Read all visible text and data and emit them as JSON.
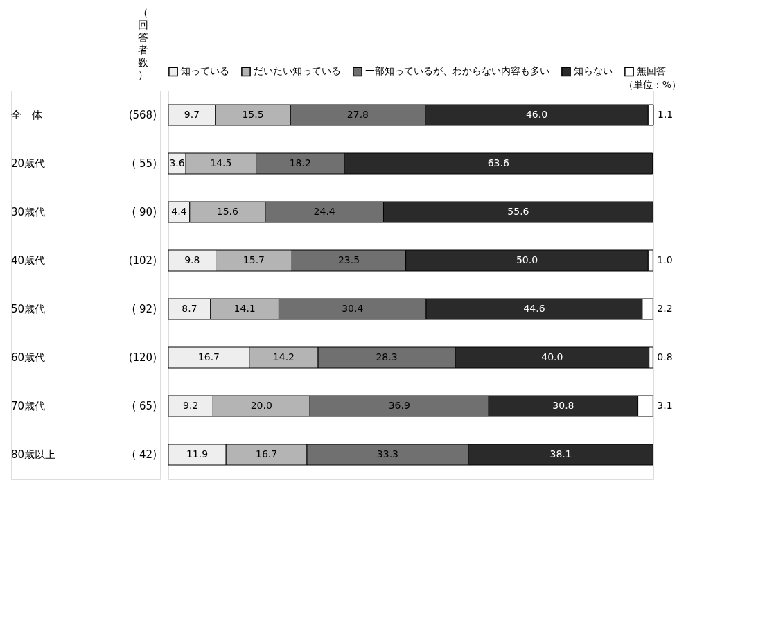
{
  "chart_data": {
    "type": "bar",
    "orientation": "horizontal",
    "stacked": true,
    "legend": "top",
    "categories": [
      "全　体",
      "20歳代",
      "30歳代",
      "40歳代",
      "50歳代",
      "60歳代",
      "70歳代",
      "80歳以上"
    ],
    "series": [
      {
        "name": "知っている",
        "color": "#eeeeee",
        "values": [
          9.7,
          3.6,
          4.4,
          9.8,
          8.7,
          16.7,
          9.2,
          11.9
        ],
        "value_labels": [
          "9.7",
          "3.6",
          "4.4",
          "9.8",
          "8.7",
          "16.7",
          "9.2",
          "11.9"
        ]
      },
      {
        "name": "だいたい知っている",
        "color": "#b4b4b4",
        "values": [
          15.5,
          14.5,
          15.6,
          15.7,
          14.1,
          14.2,
          20.0,
          16.7
        ],
        "value_labels": [
          "15.5",
          "14.5",
          "15.6",
          "15.7",
          "14.1",
          "14.2",
          "20.0",
          "16.7"
        ]
      },
      {
        "name": "一部知っているが、わからない内容も多い",
        "color": "#707070",
        "values": [
          27.8,
          18.2,
          24.4,
          23.5,
          30.4,
          28.3,
          36.9,
          33.3
        ],
        "value_labels": [
          "27.8",
          "18.2",
          "24.4",
          "23.5",
          "30.4",
          "28.3",
          "36.9",
          "33.3"
        ]
      },
      {
        "name": "知らない",
        "color": "#2a2a2a",
        "values": [
          46.0,
          63.6,
          55.6,
          50.0,
          44.6,
          40.0,
          30.8,
          38.1
        ],
        "value_labels": [
          "46.0",
          "63.6",
          "55.6",
          "50.0",
          "44.6",
          "40.0",
          "30.8",
          "38.1"
        ]
      },
      {
        "name": "無回答",
        "color": "#ffffff",
        "values": [
          1.1,
          null,
          null,
          1.0,
          2.2,
          0.8,
          3.1,
          null
        ],
        "value_labels": [
          "1.1",
          null,
          null,
          "1.0",
          "2.2",
          "0.8",
          "3.1",
          null
        ]
      }
    ],
    "annotations": [
      "（回答者数）",
      "（単位：%）",
      "(568)",
      "( 55)",
      "( 90)",
      "(102)",
      "( 92)",
      "(120)",
      "( 65)",
      "( 42)"
    ]
  }
}
